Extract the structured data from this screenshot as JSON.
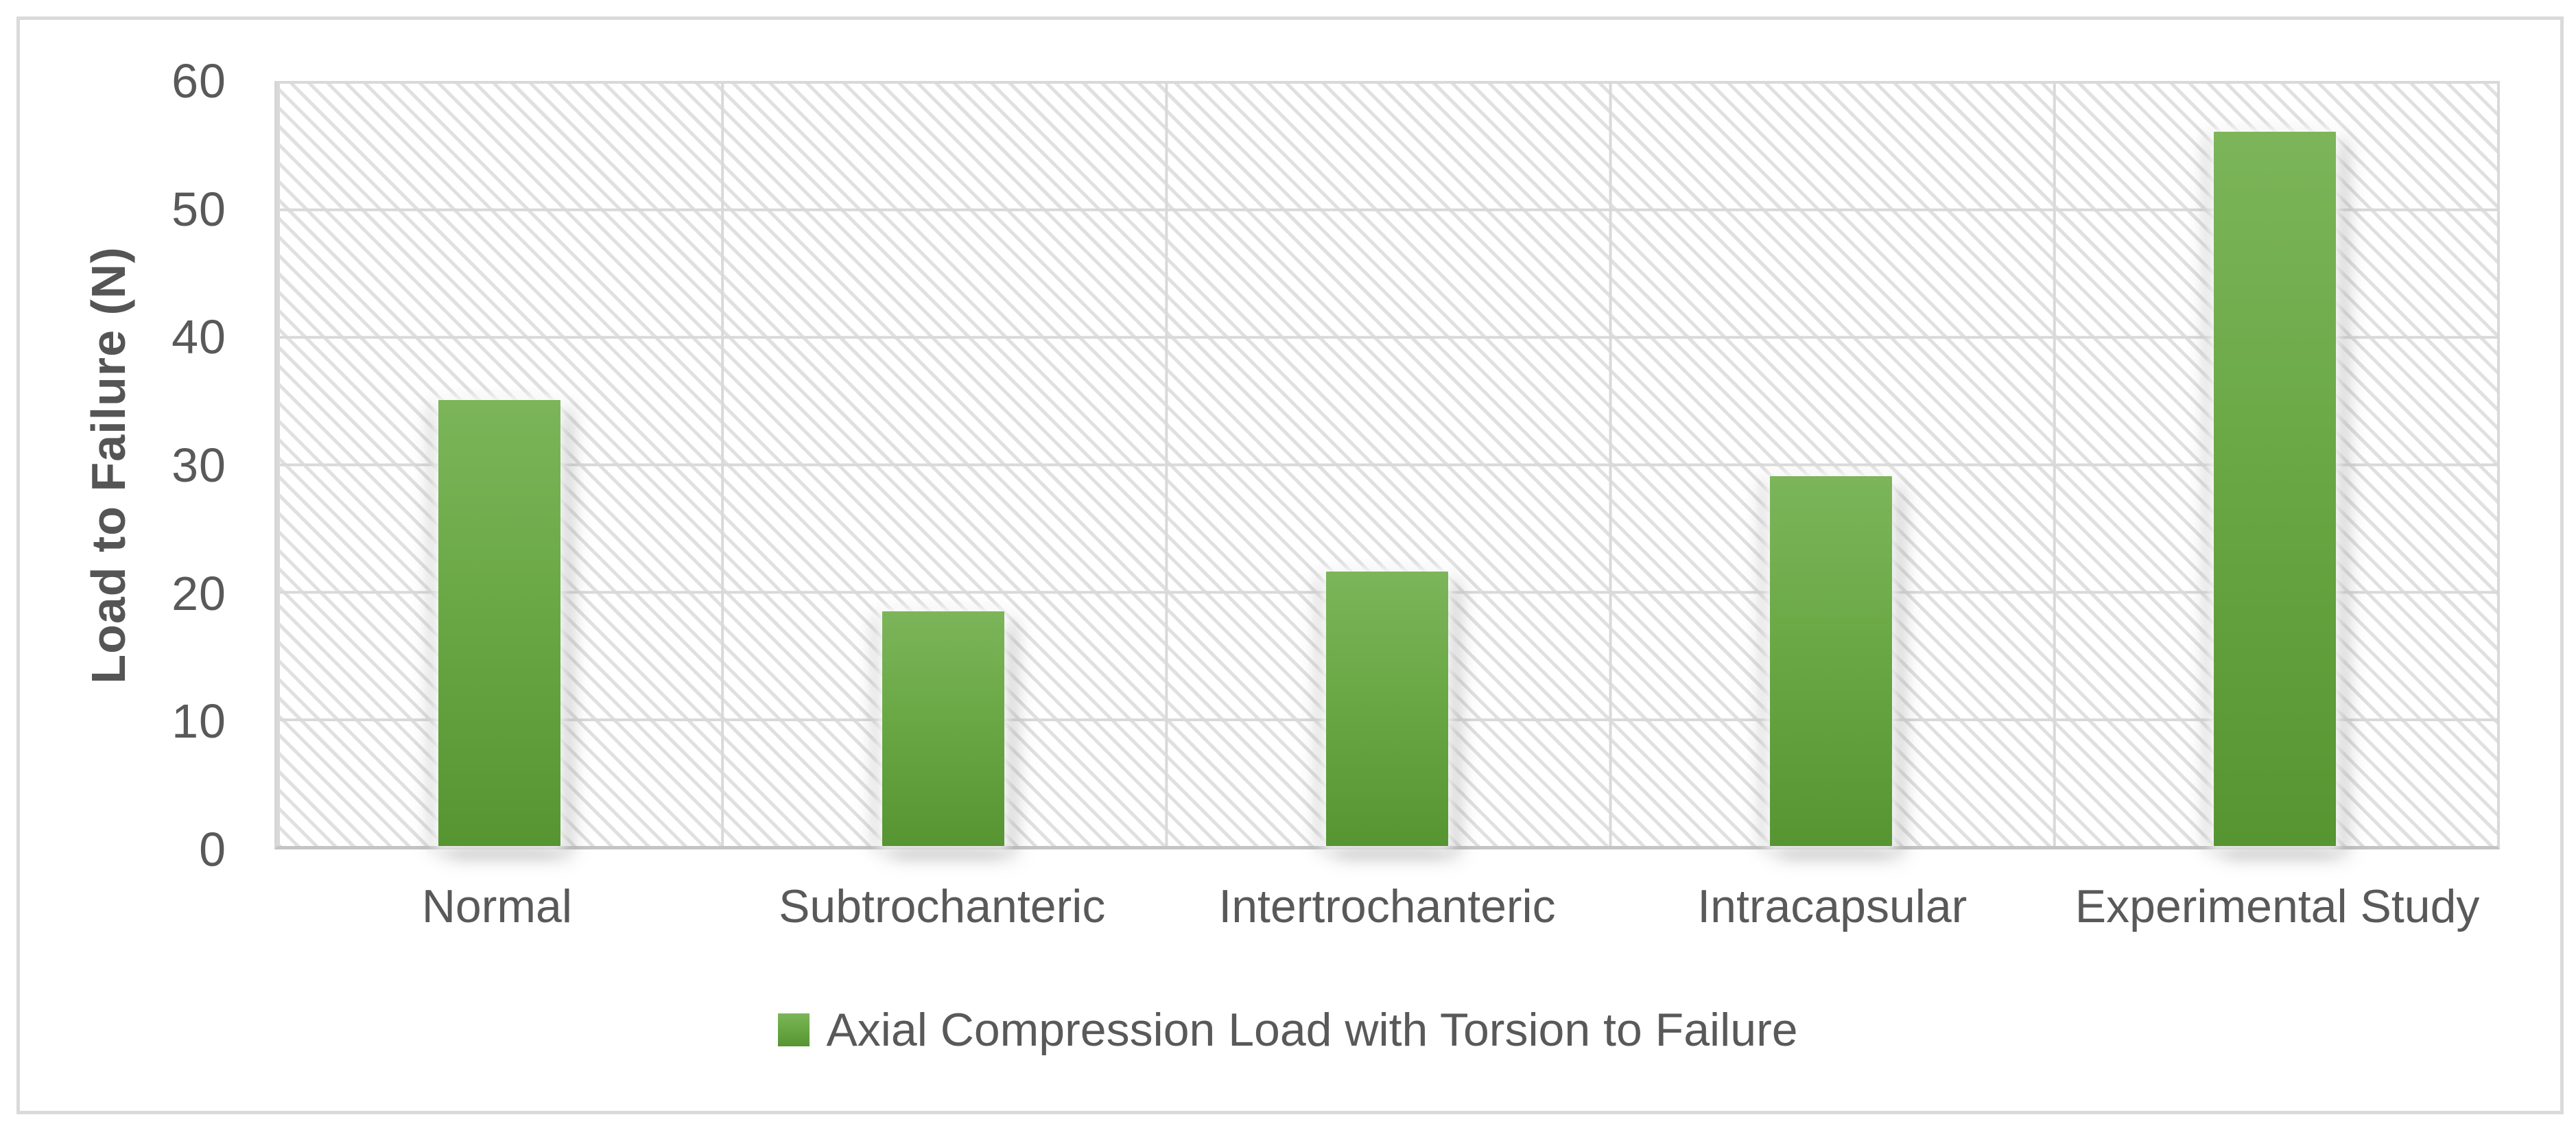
{
  "chart_data": {
    "type": "bar",
    "title": "",
    "categories": [
      "Normal",
      "Subtrochanteric",
      "Intertrochanteric",
      "Intracapsular",
      "Experimental Study"
    ],
    "series": [
      {
        "name": "Axial Compression Load with Torsion to Failure",
        "values": [
          35,
          18.4,
          21.5,
          29,
          56
        ]
      }
    ],
    "xlabel": "",
    "ylabel": "Load to Failure (N)",
    "ylim": [
      0,
      60
    ],
    "yticks": [
      0,
      10,
      20,
      30,
      40,
      50,
      60
    ],
    "grid": "both",
    "plot_background": "diagonal-hatch",
    "legend_position": "bottom-center",
    "colors": {
      "bar_gradient_top": "#7cb55a",
      "bar_gradient_mid": "#6aa845",
      "bar_gradient_bottom": "#569531",
      "text": "#595959",
      "gridline": "#d9d9d9",
      "axis_line": "#c4c4c4",
      "frame_border": "#dadada"
    }
  },
  "legend": {
    "items": [
      {
        "label": "Axial Compression Load with Torsion to Failure",
        "swatch": "green-gradient-square"
      }
    ]
  }
}
